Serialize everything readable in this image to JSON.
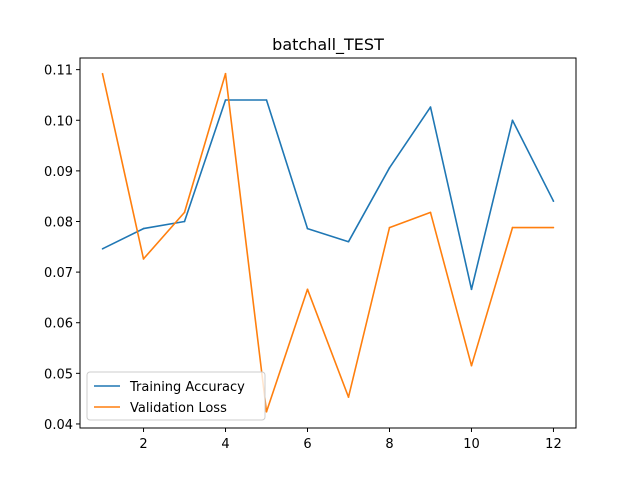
{
  "chart_data": {
    "type": "line",
    "title": "batchall_TEST",
    "xlabel": "",
    "ylabel": "",
    "x": [
      1,
      2,
      3,
      4,
      5,
      6,
      7,
      8,
      9,
      10,
      11,
      12
    ],
    "xlim": [
      0.45,
      12.55
    ],
    "ylim": [
      0.0392,
      0.1123
    ],
    "xticks": [
      2,
      4,
      6,
      8,
      10,
      12
    ],
    "xtick_labels": [
      "2",
      "4",
      "6",
      "8",
      "10",
      "12"
    ],
    "yticks": [
      0.04,
      0.05,
      0.06,
      0.07,
      0.08,
      0.09,
      0.1,
      0.11
    ],
    "ytick_labels": [
      "0.04",
      "0.05",
      "0.06",
      "0.07",
      "0.08",
      "0.09",
      "0.10",
      "0.11"
    ],
    "grid": false,
    "legend_position": "lower-left",
    "series": [
      {
        "name": "Training Accuracy",
        "color": "#1f77b4",
        "values": [
          0.0746,
          0.0786,
          0.08,
          0.104,
          0.104,
          0.0786,
          0.076,
          0.0906,
          0.1026,
          0.0666,
          0.1,
          0.084
        ]
      },
      {
        "name": "Validation Loss",
        "color": "#ff7f0e",
        "values": [
          0.1092,
          0.0726,
          0.0818,
          0.1092,
          0.0424,
          0.0666,
          0.0453,
          0.0788,
          0.0818,
          0.0515,
          0.0788,
          0.0788
        ]
      }
    ]
  }
}
